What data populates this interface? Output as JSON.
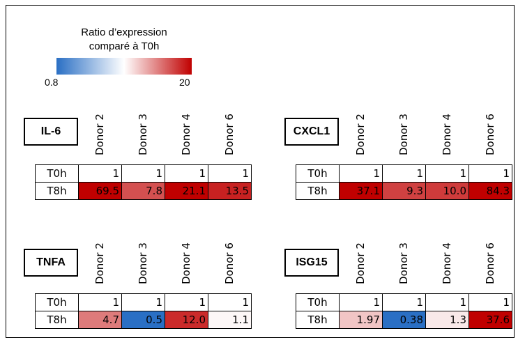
{
  "legend": {
    "title_line1": "Ratio d’expression",
    "title_line2": "comparé à T0h",
    "min_label": "0.8",
    "max_label": "20",
    "min": 0.8,
    "max": 20,
    "colors": {
      "low": "#2a6fc4",
      "mid": "#ffffff",
      "high": "#c00000"
    }
  },
  "chart_data": {
    "type": "heatmap",
    "donors": [
      "Donor 2",
      "Donor 3",
      "Donor 4",
      "Donor 6"
    ],
    "rows": [
      "T0h",
      "T8h"
    ],
    "panels": [
      {
        "gene": "IL-6",
        "values": {
          "T0h": [
            "1",
            "1",
            "1",
            "1"
          ],
          "T8h": [
            "69.5",
            "7.8",
            "21.1",
            "13.5"
          ]
        }
      },
      {
        "gene": "CXCL1",
        "values": {
          "T0h": [
            "1",
            "1",
            "1",
            "1"
          ],
          "T8h": [
            "37.1",
            "9.3",
            "10.0",
            "84.3"
          ]
        }
      },
      {
        "gene": "TNFA",
        "values": {
          "T0h": [
            "1",
            "1",
            "1",
            "1"
          ],
          "T8h": [
            "4.7",
            "0.5",
            "12.0",
            "1.1"
          ]
        }
      },
      {
        "gene": "ISG15",
        "values": {
          "T0h": [
            "1",
            "1",
            "1",
            "1"
          ],
          "T8h": [
            "1.97",
            "0.38",
            "1.3",
            "37.6"
          ]
        }
      }
    ]
  }
}
